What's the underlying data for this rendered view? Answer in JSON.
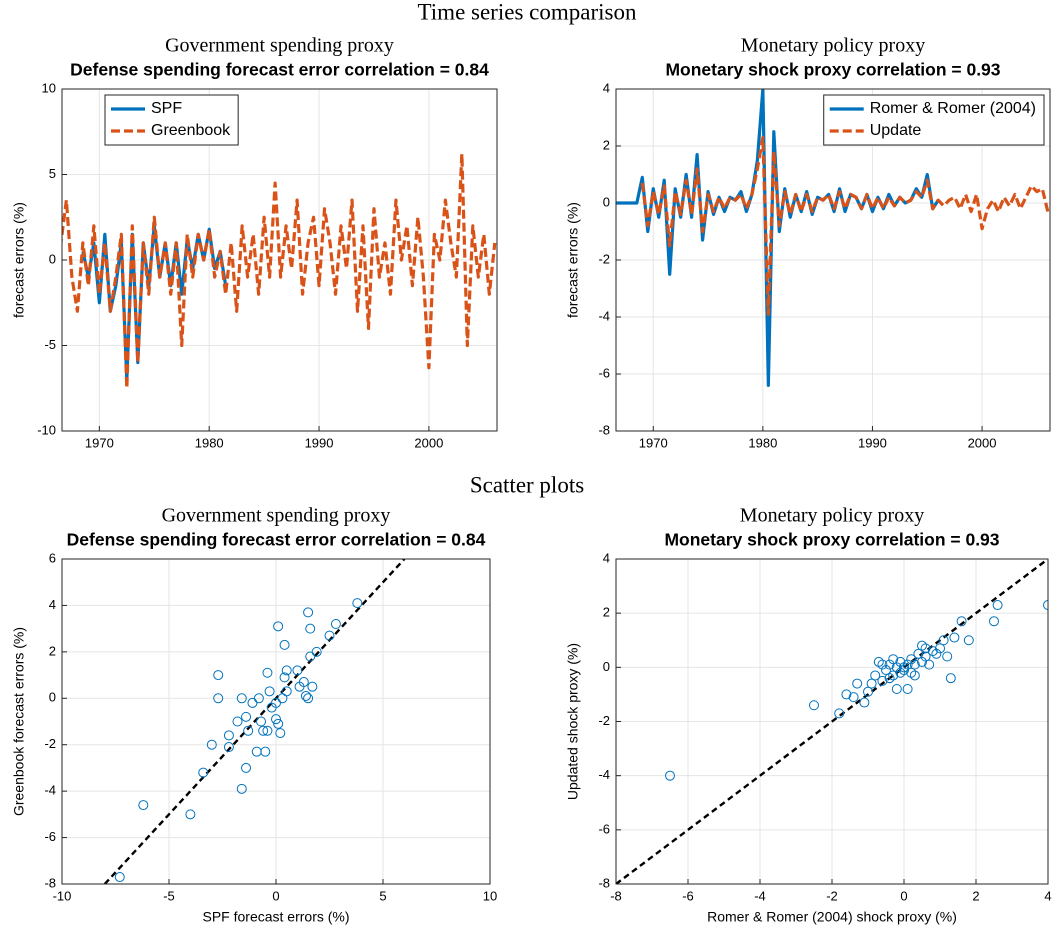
{
  "figure_title": "Time series comparison",
  "section_title": "Scatter plots",
  "chart_data": [
    {
      "type": "line",
      "group_title": "Government spending proxy",
      "title": "Defense spending forecast error correlation = 0.84",
      "ylabel": "forecast errors (%)",
      "x": [
        1966,
        1966.5,
        1967,
        1967.5,
        1968,
        1968.5,
        1969,
        1969.5,
        1970,
        1970.5,
        1971,
        1971.5,
        1972,
        1972.5,
        1973,
        1973.5,
        1974,
        1974.5,
        1975,
        1975.5,
        1976,
        1976.5,
        1977,
        1977.5,
        1978,
        1978.5,
        1979,
        1979.5,
        1980,
        1980.5,
        1981,
        1981.5,
        1982,
        1982.5,
        1983,
        1983.5,
        1984,
        1984.5,
        1985,
        1985.5,
        1986,
        1986.5,
        1987,
        1987.5,
        1988,
        1988.5,
        1989,
        1989.5,
        1990,
        1990.5,
        1991,
        1991.5,
        1992,
        1992.5,
        1993,
        1993.5,
        1994,
        1994.5,
        1995,
        1995.5,
        1996,
        1996.5,
        1997,
        1997.5,
        1998,
        1998.5,
        1999,
        1999.5,
        2000,
        2000.5,
        2001,
        2001.5,
        2002,
        2002.5,
        2003,
        2003.5,
        2004,
        2004.5,
        2005,
        2005.5,
        2006
      ],
      "series": [
        {
          "name": "SPF",
          "color": "#0072bd",
          "dashed": false,
          "values": [
            null,
            null,
            null,
            null,
            null,
            0.5,
            -1,
            1,
            -2.5,
            1.5,
            -3,
            -1.5,
            1,
            -7,
            1.5,
            -6,
            1,
            -1.5,
            2,
            -1,
            1,
            -1.5,
            1,
            -2,
            1.2,
            -0.5,
            1.5,
            0,
            1.8,
            -0.5,
            0.5,
            -1.5,
            null,
            null,
            null,
            null,
            null,
            null,
            null,
            null,
            null,
            null,
            null,
            null,
            null,
            null,
            null,
            null,
            null,
            null,
            null,
            null,
            null,
            null,
            null,
            null,
            null,
            null,
            null,
            null,
            null,
            null,
            null,
            null,
            null,
            null,
            null,
            null,
            null,
            null,
            null,
            null,
            null,
            null,
            null,
            null,
            null,
            null,
            null,
            null,
            null
          ]
        },
        {
          "name": "Greenbook",
          "color": "#d95319",
          "dashed": true,
          "values": [
            2,
            1,
            3.5,
            -1,
            -3,
            1,
            -1.5,
            2,
            -2,
            1,
            -3,
            -1,
            1.5,
            -7.5,
            2,
            -6,
            1,
            -2,
            2.5,
            -1,
            1,
            -2,
            1,
            -5,
            1.5,
            -1,
            1.5,
            0,
            1.8,
            -1,
            0.5,
            -2,
            1,
            -3,
            2,
            -1,
            1.5,
            -2,
            2.5,
            -1,
            4.5,
            -1,
            2,
            -0.5,
            3.5,
            -2,
            1,
            2.5,
            -1.5,
            3,
            1,
            -2,
            2,
            -0.5,
            3.5,
            -3,
            2,
            -4,
            3,
            -1,
            1,
            -2,
            3.5,
            0,
            2,
            -1.5,
            2.5,
            -1,
            -6.3,
            1.5,
            0,
            3.5,
            1,
            -1,
            6.2,
            -5,
            2,
            -1,
            1.5,
            -2,
            1
          ]
        }
      ],
      "xlim": [
        1966.6,
        2006.2
      ],
      "xticks": [
        1970,
        1980,
        1990,
        2000
      ],
      "ylim": [
        -10,
        10
      ],
      "yticks": [
        -10,
        -5,
        0,
        5,
        10
      ],
      "grid": true,
      "legend": "north-west"
    },
    {
      "type": "line",
      "group_title": "Monetary policy proxy",
      "title": "Monetary shock proxy correlation = 0.93",
      "ylabel": "forecast errors (%)",
      "x": [
        1966,
        1966.5,
        1967,
        1967.5,
        1968,
        1968.5,
        1969,
        1969.5,
        1970,
        1970.5,
        1971,
        1971.5,
        1972,
        1972.5,
        1973,
        1973.5,
        1974,
        1974.5,
        1975,
        1975.5,
        1976,
        1976.5,
        1977,
        1977.5,
        1978,
        1978.5,
        1979,
        1979.5,
        1980,
        1980.5,
        1981,
        1981.5,
        1982,
        1982.5,
        1983,
        1983.5,
        1984,
        1984.5,
        1985,
        1985.5,
        1986,
        1986.5,
        1987,
        1987.5,
        1988,
        1988.5,
        1989,
        1989.5,
        1990,
        1990.5,
        1991,
        1991.5,
        1992,
        1992.5,
        1993,
        1993.5,
        1994,
        1994.5,
        1995,
        1995.5,
        1996,
        1996.5,
        1997,
        1997.5,
        1998,
        1998.5,
        1999,
        1999.5,
        2000,
        2000.5,
        2001,
        2001.5,
        2002,
        2002.5,
        2003,
        2003.5,
        2004,
        2004.5,
        2005,
        2005.5,
        2006
      ],
      "series": [
        {
          "name": "Romer & Romer (2004)",
          "color": "#0072bd",
          "dashed": false,
          "values": [
            0,
            0,
            0,
            0,
            0,
            0,
            0.9,
            -1,
            0.5,
            -0.5,
            0.8,
            -2.5,
            0.5,
            -0.5,
            1,
            -0.5,
            1.7,
            -1.3,
            0.4,
            -0.4,
            0.2,
            -0.3,
            0.2,
            0.1,
            0.4,
            -0.3,
            0.3,
            1.5,
            4,
            -6.4,
            2.5,
            -1,
            0.5,
            -0.5,
            0.3,
            -0.3,
            0.4,
            -0.4,
            0.2,
            0.1,
            0.3,
            -0.3,
            0.5,
            -0.3,
            0.3,
            0.2,
            -0.2,
            0.3,
            -0.3,
            0.2,
            -0.2,
            0.3,
            -0.1,
            0.2,
            0,
            0.1,
            0.5,
            0.2,
            1,
            -0.2,
            0.1,
            null,
            null,
            null,
            null,
            null,
            null,
            null,
            null,
            null,
            null,
            null,
            null,
            null,
            null,
            null,
            null,
            null,
            null,
            null,
            null
          ]
        },
        {
          "name": "Update",
          "color": "#d95319",
          "dashed": true,
          "values": [
            null,
            null,
            null,
            null,
            null,
            null,
            0.7,
            -0.8,
            0.4,
            -0.4,
            0.6,
            -1.5,
            0.4,
            -0.4,
            0.8,
            -0.4,
            1.2,
            -1.0,
            0.3,
            -0.3,
            0.2,
            -0.2,
            0.2,
            0.1,
            0.3,
            -0.2,
            0.3,
            1.2,
            2.3,
            -3.9,
            1.8,
            -0.8,
            0.4,
            -0.4,
            0.3,
            -0.3,
            0.3,
            -0.3,
            0.2,
            0.1,
            0.3,
            -0.2,
            0.4,
            -0.2,
            0.3,
            0.2,
            -0.2,
            0.3,
            -0.2,
            0.2,
            -0.2,
            0.2,
            -0.1,
            0.2,
            0,
            0.1,
            0.4,
            0.2,
            0.8,
            -0.2,
            0.1,
            -0.1,
            0.1,
            0.2,
            -0.2,
            0.3,
            -0.3,
            0.3,
            -0.9,
            -0.2,
            0.1,
            -0.3,
            0.2,
            -0.1,
            0.3,
            -0.2,
            0.2,
            0.6,
            0.4,
            0.5,
            -0.3
          ]
        }
      ],
      "xlim": [
        1966.6,
        2006.2
      ],
      "xticks": [
        1970,
        1980,
        1990,
        2000
      ],
      "ylim": [
        -8,
        4
      ],
      "yticks": [
        -8,
        -6,
        -4,
        -2,
        0,
        2,
        4
      ],
      "grid": true,
      "legend": "north-east"
    },
    {
      "type": "scatter",
      "group_title": "Government spending proxy",
      "title": "Defense spending forecast error correlation = 0.84",
      "xlabel": "SPF forecast errors (%)",
      "ylabel": "Greenbook forecast errors (%)",
      "color": "#0072bd",
      "diagonal": true,
      "x": [
        -7.3,
        -6.2,
        -4,
        -3.4,
        -3,
        -2.7,
        -2.7,
        -2.2,
        -2.2,
        -1.8,
        -1.6,
        -1.6,
        -1.4,
        -1.4,
        -1.3,
        -1.1,
        -0.9,
        -0.8,
        -0.7,
        -0.6,
        -0.5,
        -0.4,
        -0.4,
        -0.3,
        -0.2,
        0,
        0,
        0.1,
        0.1,
        0.2,
        0.3,
        0.4,
        0.4,
        0.5,
        0.5,
        1,
        1.1,
        1.3,
        1.4,
        1.5,
        1.5,
        1.6,
        1.6,
        1.7,
        1.9,
        2.5,
        2.8,
        3.8
      ],
      "values": [
        -7.7,
        -4.6,
        -5,
        -3.2,
        -2,
        1,
        0,
        -2.1,
        -1.6,
        -1,
        -3.9,
        0,
        -3,
        -0.8,
        -1.4,
        -0.2,
        -2.3,
        0,
        -1,
        -1.4,
        -2.3,
        1.1,
        -1.4,
        0.3,
        -0.4,
        -0.2,
        -0.9,
        3.1,
        -1.1,
        -1.5,
        0,
        2.3,
        0.9,
        0.3,
        1.2,
        1.2,
        0.5,
        0.7,
        0.1,
        3.7,
        0,
        3,
        1.8,
        0.5,
        2,
        2.7,
        3.2,
        4.1
      ],
      "xlim": [
        -10,
        10
      ],
      "xticks": [
        -10,
        -5,
        0,
        5,
        10
      ],
      "ylim": [
        -8,
        6
      ],
      "yticks": [
        -8,
        -6,
        -4,
        -2,
        0,
        2,
        4,
        6
      ],
      "grid": true
    },
    {
      "type": "scatter",
      "group_title": "Monetary policy proxy",
      "title": "Monetary shock proxy correlation = 0.93",
      "xlabel": "Romer & Romer (2004) shock proxy (%)",
      "ylabel": "Updated shock proxy (%)",
      "color": "#0072bd",
      "diagonal": true,
      "x": [
        -6.5,
        -2.5,
        -1.8,
        -1.6,
        -1.4,
        -1.3,
        -1.1,
        -1.0,
        -0.9,
        -0.8,
        -0.7,
        -0.6,
        -0.5,
        -0.4,
        -0.3,
        -0.3,
        -0.2,
        -0.2,
        -0.1,
        -0.1,
        0,
        0,
        0.1,
        0.1,
        0.2,
        0.3,
        0.3,
        0.4,
        0.5,
        0.5,
        0.6,
        0.7,
        0.8,
        0.9,
        1,
        1.1,
        1.2,
        1.3,
        1.4,
        1.6,
        1.8,
        2.5,
        2.6,
        4,
        -0.4,
        0.2,
        0.6,
        -0.6
      ],
      "values": [
        -4,
        -1.4,
        -1.7,
        -1,
        -1.1,
        -0.6,
        -1.3,
        -0.9,
        -0.6,
        -0.3,
        0.2,
        -0.5,
        -0.1,
        0.1,
        -0.3,
        0.3,
        0,
        -0.8,
        0.2,
        -0.2,
        0,
        -0.1,
        0.1,
        -0.8,
        0.3,
        0.1,
        -0.3,
        0.5,
        0.2,
        0.8,
        0.4,
        0.1,
        0.6,
        0.5,
        0.7,
        1,
        0.4,
        -0.4,
        1.1,
        1.7,
        1,
        1.7,
        2.3,
        2.3,
        -0.4,
        -0.2,
        0.7,
        0.1
      ],
      "xlim": [
        -8,
        4
      ],
      "xticks": [
        -8,
        -6,
        -4,
        -2,
        0,
        2,
        4
      ],
      "ylim": [
        -8,
        4
      ],
      "yticks": [
        -8,
        -6,
        -4,
        -2,
        0,
        2,
        4
      ],
      "grid": true
    }
  ]
}
